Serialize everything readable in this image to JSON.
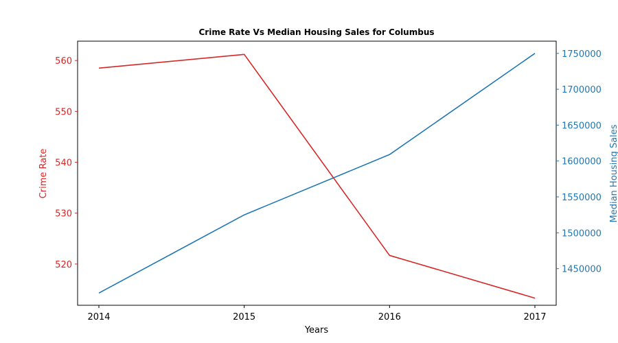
{
  "chart_data": {
    "type": "line",
    "title": "Crime Rate Vs Median Housing Sales for Columbus",
    "xlabel": "Years",
    "x": [
      "2014",
      "2015",
      "2016",
      "2017"
    ],
    "series": [
      {
        "name": "Crime Rate",
        "axis": "left",
        "color": "#d62728",
        "values": [
          558.5,
          561.2,
          521.7,
          513.3
        ]
      },
      {
        "name": "Median Housing Sales",
        "axis": "right",
        "color": "#1f77b4",
        "values": [
          1416000,
          1525000,
          1609000,
          1750000
        ]
      }
    ],
    "ylabel_left": "Crime Rate",
    "ylabel_right": "Median Housing Sales",
    "ylim_left": [
      511.9,
      563.8
    ],
    "ylim_right": [
      1399000,
      1767000
    ],
    "yticks_left": [
      520,
      530,
      540,
      550,
      560
    ],
    "yticks_right": [
      1450000,
      1500000,
      1550000,
      1600000,
      1650000,
      1700000,
      1750000
    ],
    "left_axis_color": "#d62728",
    "right_axis_color": "#1f77b4",
    "grid": false,
    "legend": "none"
  }
}
